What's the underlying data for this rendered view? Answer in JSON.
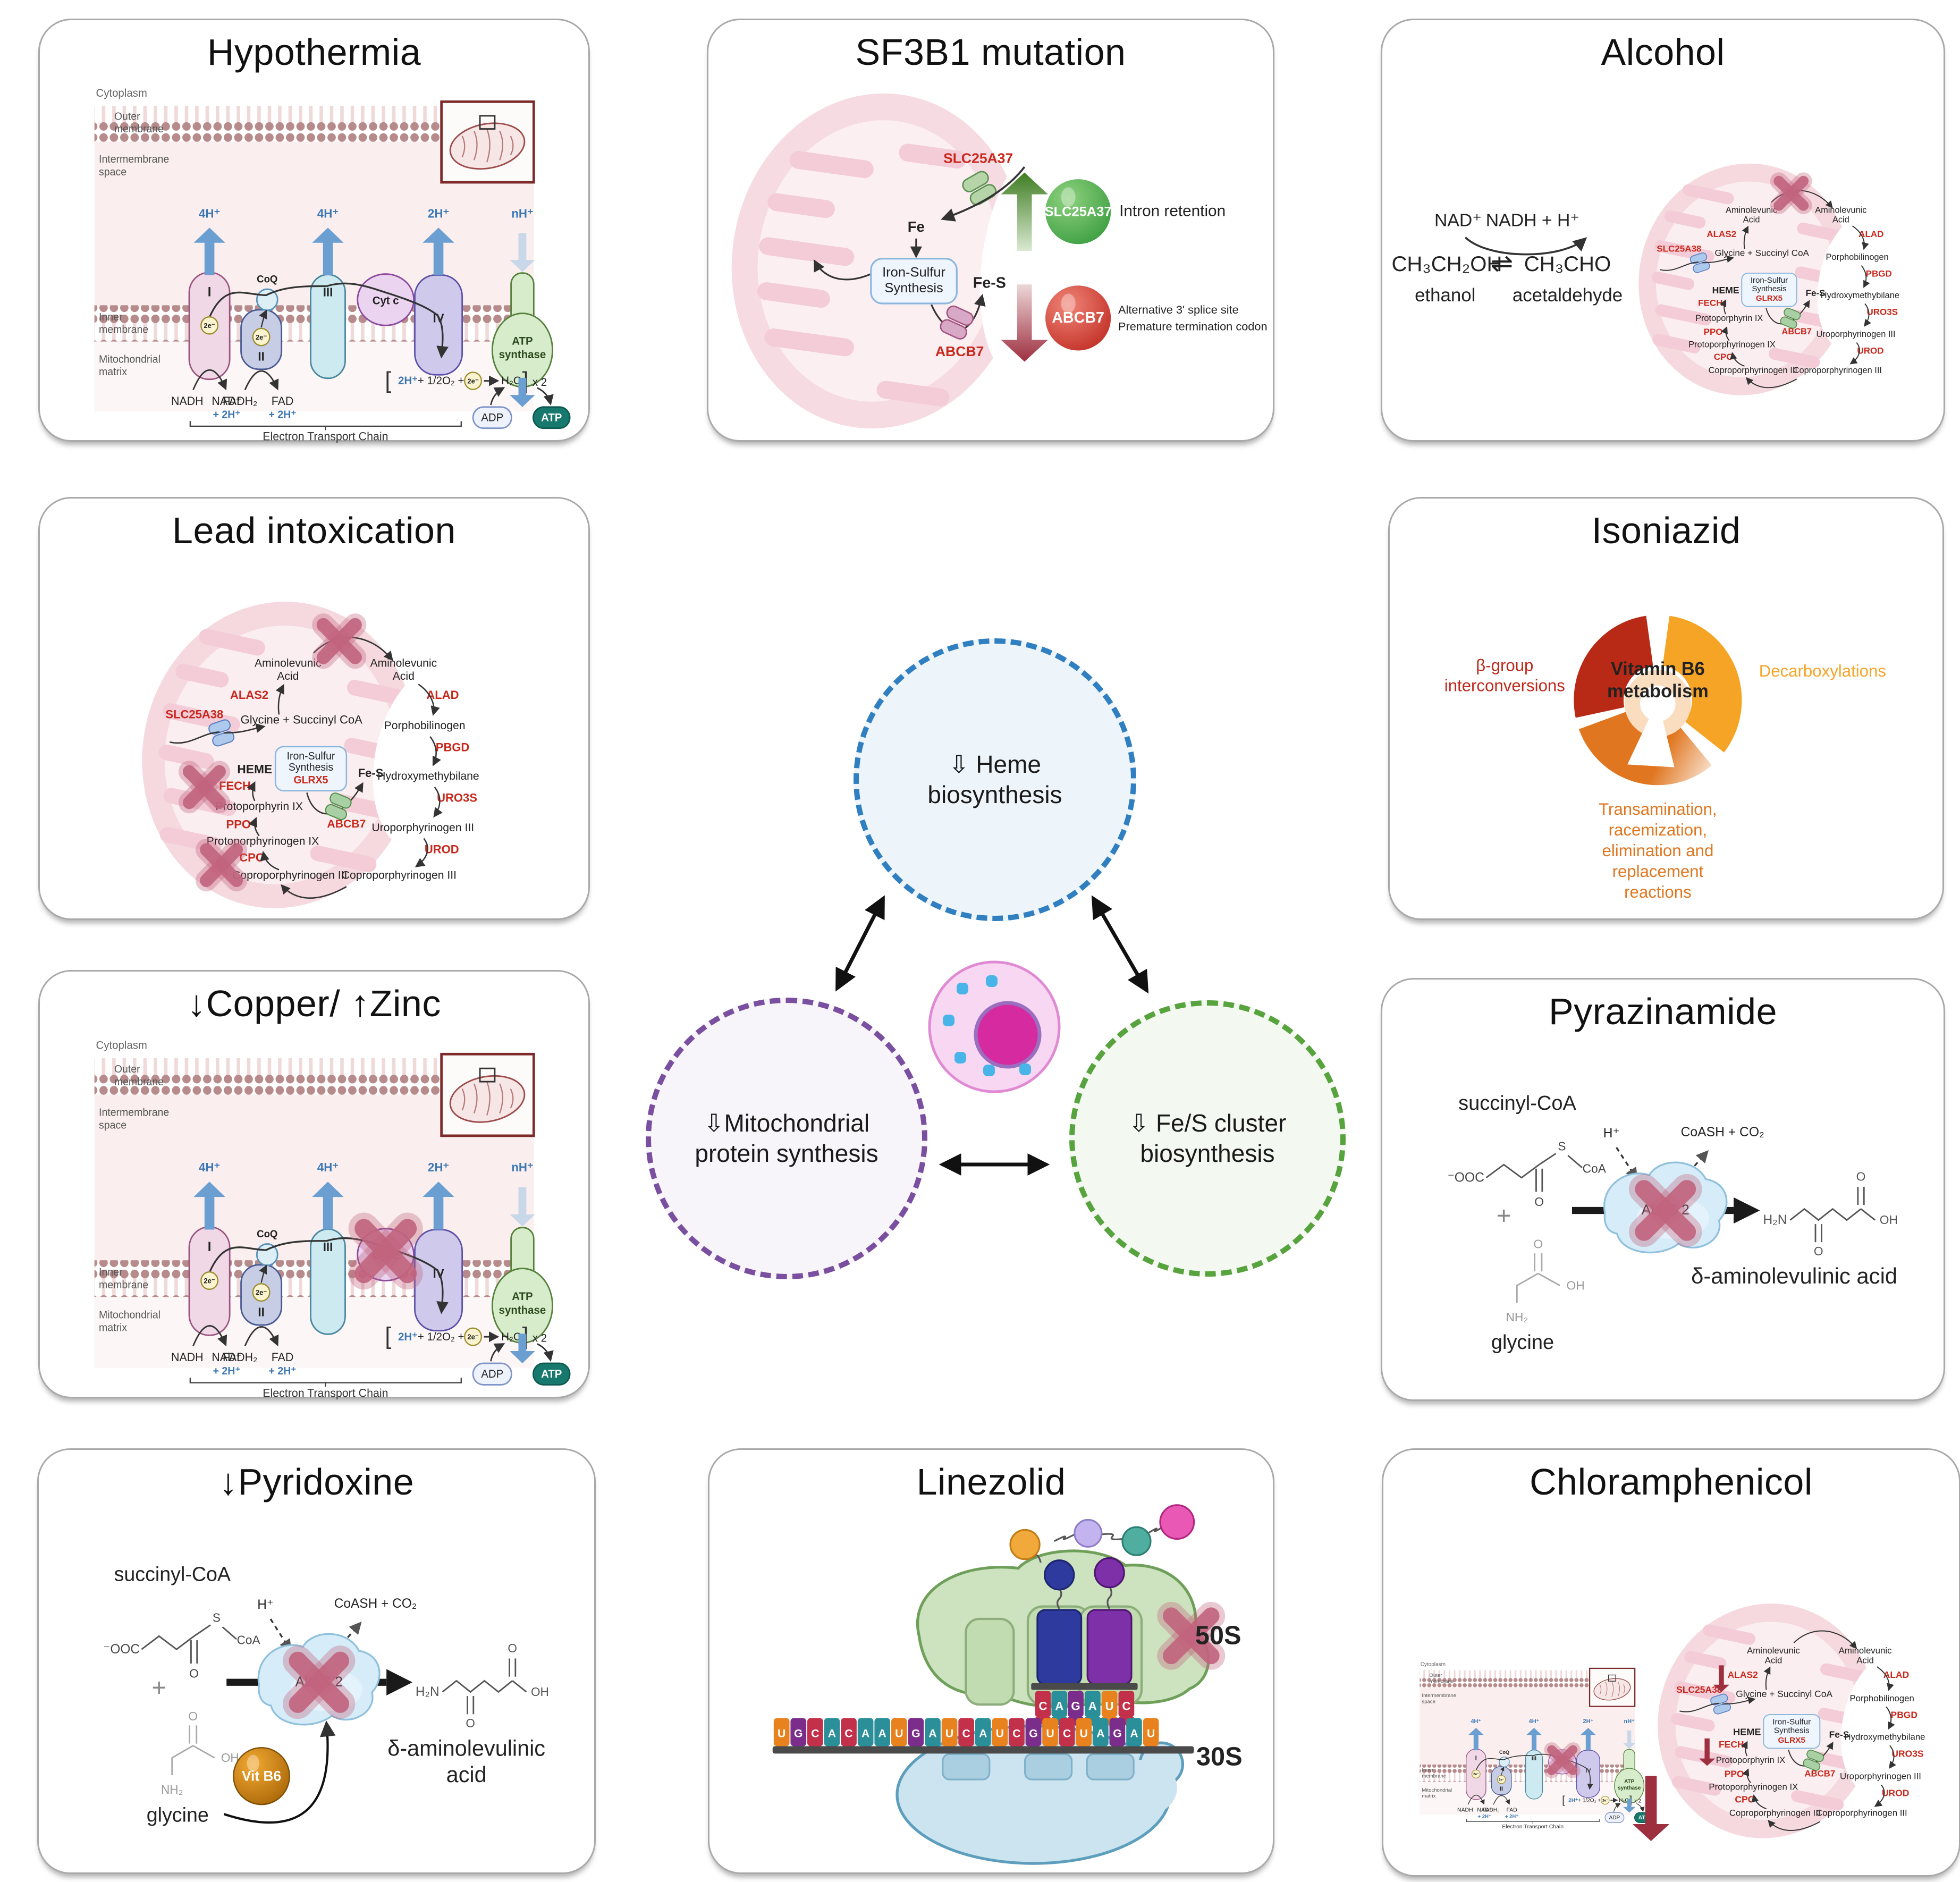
{
  "panels": {
    "hypothermia": {
      "title": "Hypothermia"
    },
    "sf3b1": {
      "title": "SF3B1 mutation",
      "slc25a37_label": "SLC25A37",
      "fe": "Fe",
      "iron_sulfur_box": [
        "Iron-Sulfur",
        "Synthesis"
      ],
      "fe_s": "Fe-S",
      "abcb7_label": "ABCB7",
      "green_sphere": "SLC25A37",
      "green_note": "Intron retention",
      "red_sphere": "ABCB7",
      "red_note": [
        "Alternative 3' splice site",
        "Premature termination codon"
      ]
    },
    "alcohol": {
      "title": "Alcohol",
      "nad": "NAD⁺",
      "nadh": "NADH + H⁺",
      "ethanol_formula": "CH₃CH₂OH",
      "equilibrium": "⇌",
      "acetaldehyde_formula": "CH₃CHO",
      "ethanol": "ethanol",
      "acetaldehyde": "acetaldehyde"
    },
    "lead": {
      "title": "Lead intoxication"
    },
    "isoniazid": {
      "title": "Isoniazid",
      "center": [
        "Vitamin B6",
        "metabolism"
      ],
      "left": [
        "β-group",
        "interconversions"
      ],
      "right": "Decarboxylations",
      "bottom": [
        "Transamination,",
        "racemization,",
        "elimination and",
        "replacement",
        "reactions"
      ]
    },
    "copper_zinc": {
      "title": "↓Copper/ ↑Zinc"
    },
    "pyrazinamide": {
      "title": "Pyrazinamide",
      "product": "δ-aminolevulinic acid"
    },
    "pyridoxine": {
      "title": "↓Pyridoxine",
      "product": [
        "δ-aminolevulinic",
        "acid"
      ],
      "vit_b6": "Vit B6"
    },
    "linezolid": {
      "title": "Linezolid",
      "mrna": "UGCACAAUGAUCAUCGUCUAGAU",
      "anticodon_p": "CAG",
      "anticodon_a": "AUC",
      "subunit_50s": "50S",
      "subunit_30s": "30S"
    },
    "chloramphenicol": {
      "title": "Chloramphenicol"
    }
  },
  "center": {
    "heme": "⇩ Heme\nbiosynthesis",
    "mito": "⇩Mitochondrial\nprotein synthesis",
    "fes": "⇩ Fe/S cluster\nbiosynthesis"
  },
  "shared": {
    "etc": {
      "cytoplasm": "Cytoplasm",
      "outer_membrane": [
        "Outer",
        "membrane"
      ],
      "intermembrane": [
        "Intermembrane",
        "space"
      ],
      "inner_membrane": [
        "Inner",
        "membrane"
      ],
      "matrix": [
        "Mitochondrial",
        "matrix"
      ],
      "complex1": "I",
      "complex2": "II",
      "complex3": "III",
      "complex4": "IV",
      "coq": "CoQ",
      "cytc": "Cyt c",
      "atp_synthase": [
        "ATP",
        "synthase"
      ],
      "h4": "4H⁺",
      "h2": "2H⁺",
      "hn": "nH⁺",
      "e2": "2e⁻",
      "nadh": "NADH",
      "nad": "NAD⁺",
      "plus_2h": "+ 2H⁺",
      "fadh2": "FADH₂",
      "fad": "FAD",
      "reaction": {
        "open": "[",
        "h": "2H⁺",
        "mid": "+ 1/2O₂ +",
        "h2o": "H₂O",
        "close": "]",
        "x2": "x 2"
      },
      "adp": "ADP",
      "atp": "ATP",
      "etc_label": "Electron Transport Chain"
    },
    "heme_pathway": {
      "slc25a38": "SLC25A38",
      "glycine_succinyl": "Glycine + Succinyl CoA",
      "alas2": "ALAS2",
      "ala": [
        "Aminolevunic",
        "Acid"
      ],
      "alad": "ALAD",
      "porphobilinogen": "Porphobilinogen",
      "pbgd": "PBGD",
      "hydroxymethybilane": "Hydroxymethybilane",
      "uro3s": "URO3S",
      "uroporphyrinogen": "Uroporphyrinogen III",
      "urod": "UROD",
      "coproporphyrinogen": "Coproporphyrinogen III",
      "cpo": "CPO",
      "protoporphyrinogen": "Protoporphyrinogen IX",
      "ppo": "PPO",
      "protoporphyrin": "Protoporphyrin IX",
      "fech": "FECH",
      "heme": "HEME",
      "iron_sulfur_box": [
        "Iron-Sulfur",
        "Synthesis"
      ],
      "glrx5": "GLRX5",
      "fe_s": "Fe-S",
      "abcb7": "ABCB7"
    },
    "alas_reaction": {
      "succinyl_coa": "succinyl-CoA",
      "ooc": "⁻OOC",
      "s": "S",
      "coa": "CoA",
      "o": "O",
      "plus": "+",
      "oh": "OH",
      "nh2": "NH₂",
      "glycine": "glycine",
      "h_plus": "H⁺",
      "coash_co2": "CoASH + CO₂",
      "alas2": "ALAS 2",
      "h2n": "H₂N"
    }
  },
  "colors": {
    "red_label": "#c9281c",
    "x_mark": "#c2647e",
    "red_arrow": "#9e2f3e",
    "nucleotide": {
      "A": "#2a8f99",
      "U": "#e8821f",
      "G": "#7b2d8c",
      "C": "#c2304a"
    },
    "iso_dark_red": "#b92a16",
    "iso_amber": "#f6a426",
    "iso_orange": "#e0761f",
    "circle_blue": "#2f7fc1",
    "circle_purple": "#7b4fa0",
    "circle_green": "#57a33e"
  }
}
